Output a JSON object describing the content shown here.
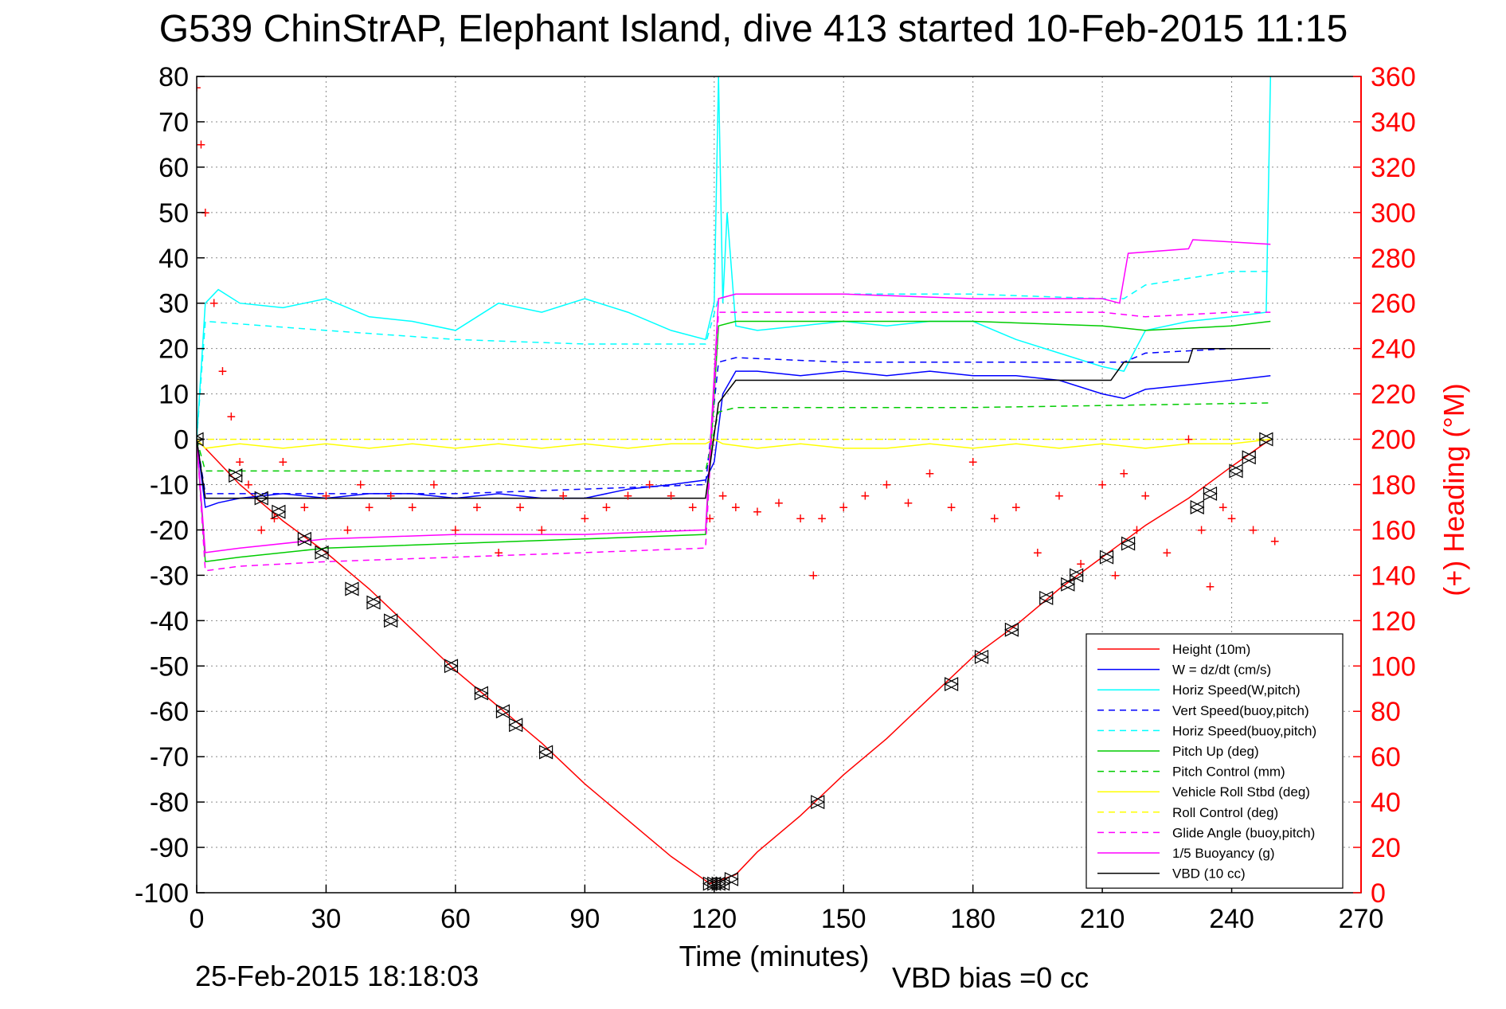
{
  "chart_data": {
    "type": "line",
    "title": "G539 ChinStrAP, Elephant Island, dive 413 started 10-Feb-2015 11:15",
    "xlabel": "Time (minutes)",
    "ylabel_right": "(+) Heading (°M)",
    "xlim": [
      0,
      270
    ],
    "ylim": [
      -100,
      80
    ],
    "ylim_right": [
      0,
      360
    ],
    "x_ticks": [
      0,
      30,
      60,
      90,
      120,
      150,
      180,
      210,
      240,
      270
    ],
    "y_ticks": [
      80,
      70,
      60,
      50,
      40,
      30,
      20,
      10,
      0,
      -10,
      -20,
      -30,
      -40,
      -50,
      -60,
      -70,
      -80,
      -90,
      -100
    ],
    "y_ticks_right": [
      360,
      340,
      320,
      300,
      280,
      260,
      240,
      220,
      200,
      180,
      160,
      140,
      120,
      100,
      80,
      60,
      40,
      20,
      0
    ],
    "grid": true,
    "legend_position": "bottom-right",
    "footer_left": "25-Feb-2015 18:18:03",
    "footer_right": "VBD bias =0 cc",
    "colors": {
      "axis": "#000000",
      "grid": "#8a8a8a",
      "heading_axis": "#ff0000"
    },
    "series": [
      {
        "name": "Height (10m)",
        "color": "#ff0000",
        "dash": "solid",
        "x": [
          0,
          5,
          10,
          20,
          30,
          40,
          50,
          60,
          70,
          80,
          90,
          100,
          110,
          119,
          122,
          125,
          130,
          140,
          150,
          160,
          170,
          180,
          190,
          200,
          210,
          220,
          230,
          240,
          249
        ],
        "y": [
          0,
          -5,
          -10,
          -18,
          -25,
          -33,
          -42,
          -51,
          -59,
          -67,
          -76,
          -84,
          -92,
          -98,
          -97,
          -96,
          -91,
          -83,
          -74,
          -66,
          -57,
          -48,
          -41,
          -33,
          -26,
          -19,
          -13,
          -6,
          0
        ]
      },
      {
        "name": "W = dz/dt (cm/s)",
        "color": "#0000ff",
        "dash": "solid",
        "x": [
          0,
          2,
          5,
          10,
          20,
          30,
          40,
          50,
          60,
          70,
          80,
          90,
          100,
          110,
          118,
          120,
          122,
          125,
          130,
          140,
          150,
          160,
          170,
          180,
          190,
          200,
          210,
          215,
          220,
          230,
          240,
          249
        ],
        "y": [
          0,
          -15,
          -14,
          -13,
          -12,
          -13,
          -12,
          -12,
          -13,
          -12,
          -13,
          -13,
          -11,
          -10,
          -9,
          -5,
          10,
          15,
          15,
          14,
          15,
          14,
          15,
          14,
          14,
          13,
          10,
          9,
          11,
          12,
          13,
          14
        ]
      },
      {
        "name": "Horiz Speed(W,pitch)",
        "color": "#00ffff",
        "dash": "solid",
        "x": [
          0,
          2,
          5,
          10,
          20,
          30,
          40,
          50,
          60,
          70,
          80,
          90,
          100,
          110,
          118,
          120,
          121,
          122,
          123,
          125,
          130,
          140,
          150,
          160,
          170,
          180,
          190,
          200,
          210,
          215,
          220,
          230,
          240,
          248,
          249
        ],
        "y": [
          0,
          30,
          33,
          30,
          29,
          31,
          27,
          26,
          24,
          30,
          28,
          31,
          28,
          24,
          22,
          30,
          80,
          30,
          50,
          25,
          24,
          25,
          26,
          25,
          26,
          26,
          22,
          19,
          16,
          15,
          24,
          26,
          27,
          28,
          80
        ]
      },
      {
        "name": "Vert Speed(buoy,pitch)",
        "color": "#0000ff",
        "dash": "dashed",
        "x": [
          0,
          2,
          30,
          60,
          90,
          118,
          121,
          125,
          150,
          180,
          210,
          215,
          220,
          240,
          249
        ],
        "y": [
          0,
          -12,
          -12,
          -12,
          -11,
          -10,
          17,
          18,
          17,
          17,
          17,
          17,
          19,
          20,
          20
        ]
      },
      {
        "name": "Horiz Speed(buoy,pitch)",
        "color": "#00ffff",
        "dash": "dashed",
        "x": [
          0,
          2,
          30,
          60,
          90,
          118,
          121,
          125,
          150,
          180,
          210,
          215,
          220,
          240,
          249
        ],
        "y": [
          0,
          26,
          24,
          22,
          21,
          21,
          31,
          32,
          32,
          32,
          31,
          31,
          34,
          37,
          37
        ]
      },
      {
        "name": "Pitch Up (deg)",
        "color": "#00cc00",
        "dash": "solid",
        "x": [
          0,
          2,
          10,
          30,
          60,
          90,
          118,
          121,
          125,
          150,
          180,
          210,
          220,
          240,
          249
        ],
        "y": [
          0,
          -27,
          -26,
          -24,
          -23,
          -22,
          -21,
          25,
          26,
          26,
          26,
          25,
          24,
          25,
          26
        ]
      },
      {
        "name": "Pitch Control (mm)",
        "color": "#00cc00",
        "dash": "dashed",
        "x": [
          0,
          2,
          60,
          118,
          121,
          125,
          180,
          249
        ],
        "y": [
          0,
          -7,
          -7,
          -7,
          6,
          7,
          7,
          8
        ]
      },
      {
        "name": "Vehicle Roll Stbd (deg)",
        "color": "#ffff00",
        "dash": "solid",
        "x": [
          0,
          2,
          10,
          20,
          30,
          40,
          50,
          60,
          70,
          80,
          90,
          100,
          110,
          118,
          120,
          122,
          130,
          140,
          150,
          160,
          170,
          180,
          190,
          200,
          210,
          220,
          230,
          240,
          249
        ],
        "y": [
          0,
          -2,
          -1,
          -2,
          -1,
          -2,
          -1,
          -2,
          -1,
          -2,
          -1,
          -2,
          -1,
          -1,
          0,
          -1,
          -2,
          -1,
          -2,
          -2,
          -1,
          -2,
          -1,
          -2,
          -1,
          -2,
          -1,
          -1,
          0
        ]
      },
      {
        "name": "Roll Control (deg)",
        "color": "#ffff00",
        "dash": "dashed",
        "x": [
          0,
          2,
          60,
          118,
          122,
          180,
          249
        ],
        "y": [
          0,
          0,
          0,
          0,
          0,
          0,
          0
        ]
      },
      {
        "name": "Glide Angle (buoy,pitch)",
        "color": "#ff00ff",
        "dash": "dashed",
        "x": [
          0,
          2,
          10,
          30,
          60,
          90,
          118,
          121,
          125,
          150,
          180,
          210,
          220,
          240,
          249
        ],
        "y": [
          0,
          -29,
          -28,
          -27,
          -26,
          -25,
          -24,
          28,
          28,
          28,
          28,
          28,
          27,
          28,
          28
        ]
      },
      {
        "name": "1/5 Buoyancy (g)",
        "color": "#ff00ff",
        "dash": "solid",
        "x": [
          0,
          2,
          10,
          30,
          60,
          90,
          118,
          121,
          125,
          150,
          180,
          210,
          214,
          216,
          230,
          231,
          249
        ],
        "y": [
          0,
          -25,
          -24,
          -22,
          -21,
          -21,
          -20,
          31,
          32,
          32,
          31,
          31,
          30,
          41,
          42,
          44,
          43
        ]
      },
      {
        "name": "VBD (10 cc)",
        "color": "#000000",
        "dash": "solid",
        "x": [
          0,
          2,
          60,
          118,
          121,
          125,
          180,
          212,
          215,
          230,
          231,
          249
        ],
        "y": [
          0,
          -13,
          -13,
          -13,
          8,
          13,
          13,
          13,
          17,
          17,
          20,
          20
        ]
      }
    ],
    "heading": {
      "name": "(+) Heading",
      "color": "#ff0000",
      "marker": "+",
      "x": [
        0,
        1,
        2,
        4,
        6,
        8,
        10,
        12,
        15,
        18,
        20,
        25,
        30,
        35,
        38,
        40,
        45,
        50,
        55,
        60,
        65,
        70,
        75,
        80,
        85,
        90,
        95,
        100,
        105,
        110,
        115,
        119,
        122,
        125,
        130,
        135,
        140,
        143,
        145,
        150,
        155,
        160,
        165,
        170,
        175,
        180,
        185,
        190,
        195,
        200,
        205,
        210,
        213,
        215,
        218,
        220,
        225,
        230,
        233,
        235,
        238,
        240,
        245,
        250
      ],
      "y": [
        355,
        330,
        300,
        260,
        230,
        210,
        190,
        180,
        160,
        165,
        190,
        170,
        175,
        160,
        180,
        170,
        175,
        170,
        180,
        160,
        170,
        150,
        170,
        160,
        175,
        165,
        170,
        175,
        180,
        175,
        170,
        165,
        175,
        170,
        168,
        172,
        165,
        140,
        165,
        170,
        175,
        180,
        172,
        185,
        170,
        190,
        165,
        170,
        150,
        175,
        145,
        180,
        140,
        185,
        160,
        175,
        150,
        200,
        160,
        135,
        170,
        165,
        160,
        155
      ]
    },
    "markers": {
      "name": "dive markers",
      "color": "#000000",
      "x": [
        0,
        9,
        15,
        19,
        25,
        29,
        36,
        41,
        45,
        59,
        66,
        71,
        74,
        81,
        119,
        120,
        121,
        122,
        124,
        144,
        175,
        182,
        189,
        197,
        202,
        204,
        211,
        216,
        232,
        235,
        241,
        244,
        248
      ],
      "y": [
        0,
        -8,
        -13,
        -16,
        -22,
        -25,
        -33,
        -36,
        -40,
        -50,
        -56,
        -60,
        -63,
        -69,
        -98,
        -98,
        -98,
        -98,
        -97,
        -80,
        -54,
        -48,
        -42,
        -35,
        -32,
        -30,
        -26,
        -23,
        -15,
        -12,
        -7,
        -4,
        0
      ]
    }
  }
}
